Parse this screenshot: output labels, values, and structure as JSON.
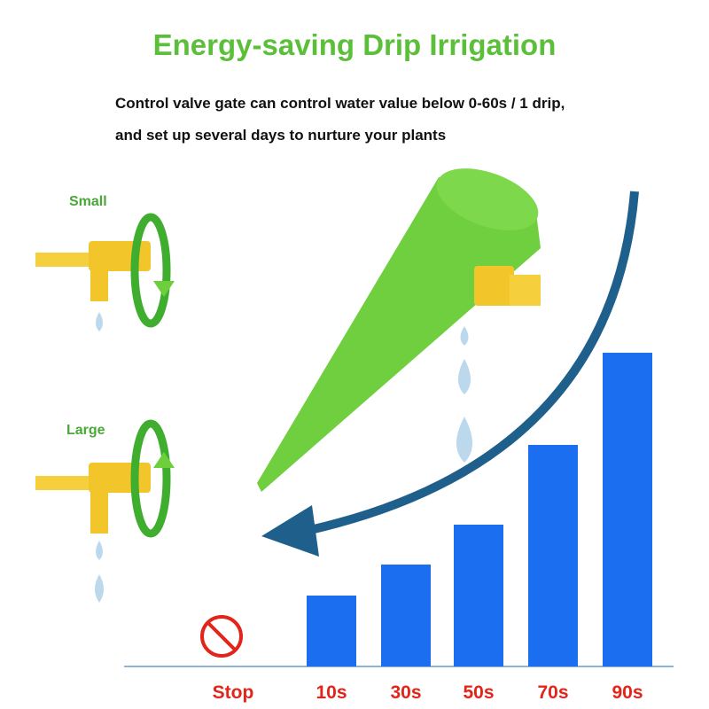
{
  "header": {
    "title": "Energy-saving Drip Irrigation",
    "description": [
      "Control valve gate can control water value below 0-60s / 1 drip,",
      "and set up several days to nurture your plants"
    ]
  },
  "settings": {
    "small_label": "Small",
    "large_label": "Large"
  },
  "chart_data": {
    "type": "bar",
    "categories": [
      "Stop",
      "10s",
      "30s",
      "50s",
      "70s",
      "90s"
    ],
    "values": [
      0,
      80,
      115,
      160,
      250,
      354
    ],
    "color": "#1b6ef0",
    "label_color": "#e1251b"
  }
}
